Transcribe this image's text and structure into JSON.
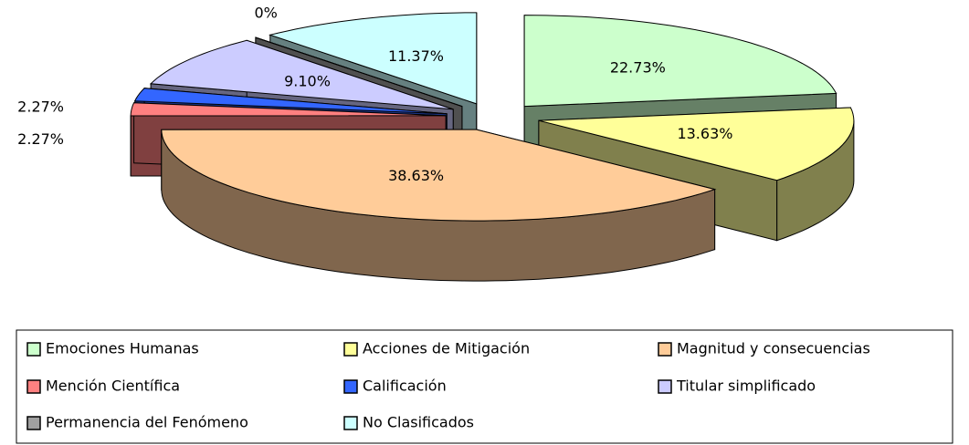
{
  "chart_data": {
    "type": "pie",
    "categories": [
      "Emociones Humanas",
      "Acciones de Mitigación",
      "Magnitud y consecuencias",
      "Mención Científica",
      "Calificación",
      "Titular simplificado",
      "Permanencia del Fenómeno",
      "No Clasificados"
    ],
    "values": [
      22.73,
      13.63,
      38.63,
      2.27,
      2.27,
      9.1,
      0,
      11.37
    ],
    "value_labels": [
      "22.73%",
      "13.63%",
      "38.63%",
      "2.27%",
      "2.27%",
      "9.10%",
      "0%",
      "11.37%"
    ],
    "colors": [
      "#ccffcc",
      "#ffff99",
      "#ffcc99",
      "#ff8080",
      "#3366ff",
      "#ccccff",
      "#a0a0a0",
      "#ccffff"
    ],
    "legend": "bottom"
  }
}
